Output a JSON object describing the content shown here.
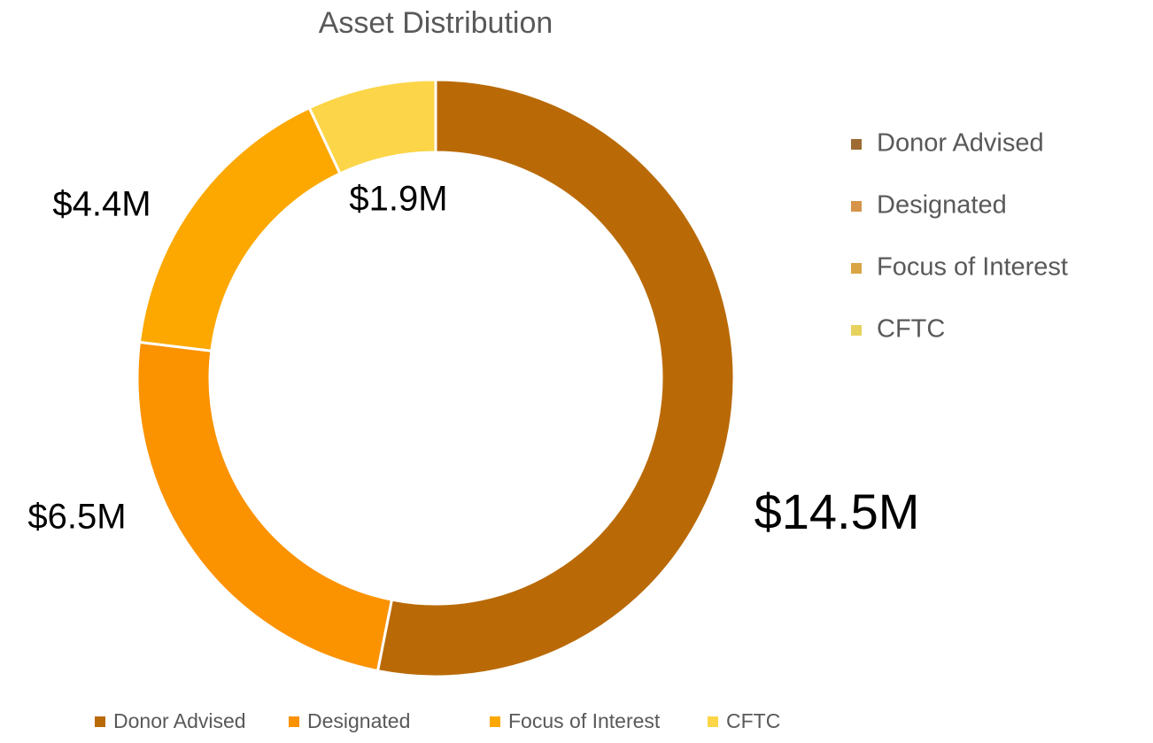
{
  "chart_data": {
    "type": "donut",
    "title": "Asset Distribution",
    "categories": [
      "Donor Advised",
      "Designated",
      "Focus of Interest",
      "CFTC"
    ],
    "values": [
      14.5,
      6.5,
      4.4,
      1.9
    ],
    "value_labels": [
      "$14.5M",
      "$6.5M",
      "$4.4M",
      "$1.9M"
    ],
    "colors": [
      "#b96a07",
      "#fb9200",
      "#fca800",
      "#fcd548"
    ],
    "side_legend_colors": [
      "#9e6b33",
      "#d6954a",
      "#d9a443",
      "#e8d25e"
    ]
  }
}
